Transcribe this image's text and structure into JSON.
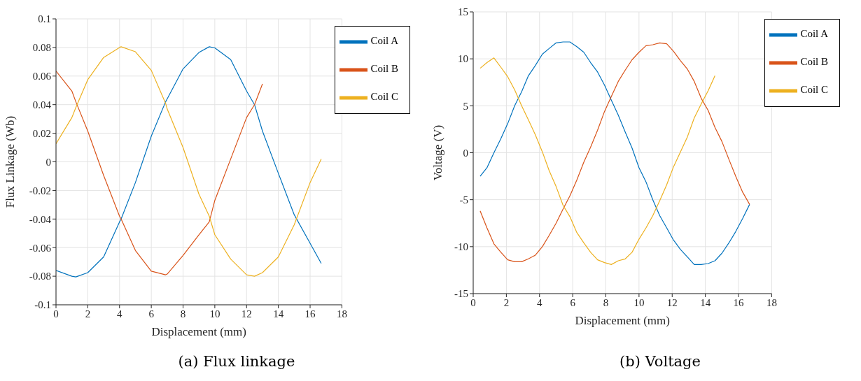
{
  "chart_data": [
    {
      "type": "line",
      "title": "(a) Flux linkage",
      "xlabel": "Displacement (mm)",
      "ylabel": "Flux Linkage (Wb)",
      "xlim": [
        0,
        18
      ],
      "xticks": [
        0,
        2,
        4,
        6,
        8,
        10,
        12,
        14,
        16,
        18
      ],
      "ylim": [
        -0.1,
        0.1
      ],
      "yticks": [
        -0.1,
        -0.08,
        -0.06,
        -0.04,
        -0.02,
        0,
        0.02,
        0.04,
        0.06,
        0.08,
        0.1
      ],
      "grid": true,
      "legend": "top right",
      "x": [
        0,
        1,
        1.25,
        2,
        3,
        4,
        4.1,
        5,
        6,
        6.9,
        7,
        8,
        9,
        9.65,
        10,
        11,
        12,
        12.5,
        13,
        14,
        15,
        16,
        16.7
      ],
      "series": [
        {
          "name": "Coil A",
          "color": "#0072bd",
          "values": [
            -0.076,
            -0.08,
            -0.0805,
            -0.0775,
            -0.0665,
            -0.042,
            -0.04,
            -0.0145,
            0.018,
            0.042,
            0.044,
            0.065,
            0.0765,
            0.0805,
            0.0797,
            0.0715,
            0.0495,
            0.04,
            0.0215,
            -0.008,
            -0.037,
            -0.057,
            -0.071
          ]
        },
        {
          "name": "Coil B",
          "color": "#d95319",
          "values": [
            0.0635,
            0.0495,
            0.042,
            0.0215,
            -0.0095,
            -0.038,
            -0.04,
            -0.062,
            -0.0765,
            -0.079,
            -0.0785,
            -0.0655,
            -0.051,
            -0.042,
            -0.027,
            0.002,
            0.031,
            0.04,
            0.0545,
            null,
            null,
            null,
            null
          ]
        },
        {
          "name": "Coil C",
          "color": "#edb120",
          "values": [
            0.0126,
            0.031,
            0.038,
            0.0575,
            0.073,
            0.08,
            0.0805,
            0.077,
            0.064,
            0.041,
            0.037,
            0.01,
            -0.0226,
            -0.038,
            -0.051,
            -0.068,
            -0.079,
            -0.08,
            -0.0775,
            -0.0665,
            -0.044,
            -0.0145,
            0.002
          ]
        }
      ]
    },
    {
      "type": "line",
      "title": "(b) Voltage",
      "xlabel": "Displacement (mm)",
      "ylabel": "Voltage (V)",
      "xlim": [
        0,
        18
      ],
      "xticks": [
        0,
        2,
        4,
        6,
        8,
        10,
        12,
        14,
        16,
        18
      ],
      "ylim": [
        -15,
        15
      ],
      "yticks": [
        -15,
        -10,
        -5,
        0,
        5,
        10,
        15
      ],
      "grid": true,
      "legend": "top right",
      "x": [
        0.42,
        0.83,
        1.25,
        1.67,
        2.08,
        2.5,
        2.92,
        3.33,
        3.75,
        4.17,
        4.58,
        5.0,
        5.42,
        5.83,
        6.25,
        6.67,
        7.08,
        7.5,
        7.92,
        8.33,
        8.75,
        9.17,
        9.58,
        10.0,
        10.42,
        10.83,
        11.25,
        11.67,
        12.08,
        12.5,
        12.92,
        13.33,
        13.75,
        14.17,
        14.58,
        15.0,
        15.42,
        15.83,
        16.25,
        16.67
      ],
      "series": [
        {
          "name": "Coil A",
          "color": "#0072bd",
          "values": [
            -2.5,
            -1.6,
            0,
            1.5,
            3.1,
            5.0,
            6.5,
            8.2,
            9.3,
            10.5,
            11.1,
            11.7,
            11.8,
            11.8,
            11.3,
            10.7,
            9.6,
            8.6,
            7.2,
            5.6,
            4.0,
            2.2,
            0.5,
            -1.6,
            -3.1,
            -5.0,
            -6.7,
            -8.0,
            -9.3,
            -10.3,
            -11.1,
            -11.9,
            -11.9,
            -11.8,
            -11.5,
            -10.7,
            -9.6,
            -8.4,
            -7.0,
            -5.5
          ]
        },
        {
          "name": "Coil B",
          "color": "#d95319",
          "values": [
            -6.2,
            -8.0,
            -9.7,
            -10.6,
            -11.4,
            -11.6,
            -11.6,
            -11.3,
            -10.9,
            -10.0,
            -8.8,
            -7.5,
            -6.0,
            -4.6,
            -2.9,
            -1.0,
            0.6,
            2.4,
            4.4,
            6.0,
            7.6,
            8.8,
            9.9,
            10.7,
            11.4,
            11.5,
            11.7,
            11.6,
            10.8,
            9.8,
            8.9,
            7.6,
            5.8,
            4.5,
            2.7,
            1.2,
            -0.7,
            -2.5,
            -4.2,
            -5.5
          ]
        },
        {
          "name": "Coil C",
          "color": "#edb120",
          "values": [
            9.0,
            9.6,
            10.1,
            9.1,
            8.1,
            6.7,
            5.0,
            3.5,
            1.9,
            0.1,
            -1.9,
            -3.6,
            -5.6,
            -6.8,
            -8.5,
            -9.6,
            -10.6,
            -11.4,
            -11.7,
            -11.9,
            -11.5,
            -11.3,
            -10.6,
            -9.2,
            -8.0,
            -6.7,
            -5.1,
            -3.4,
            -1.5,
            0.1,
            1.7,
            3.7,
            5.2,
            6.6,
            8.2,
            null,
            null,
            null,
            null,
            null
          ]
        }
      ]
    }
  ]
}
